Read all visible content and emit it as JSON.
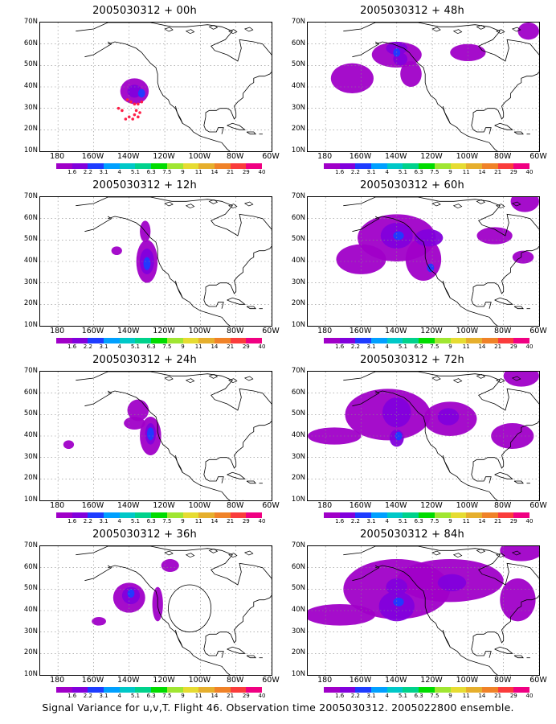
{
  "caption": "Signal Variance for u,v,T. Flight 46. Observation time 2005030312. 2005022800 ensemble.",
  "lat_labels": [
    "70N",
    "60N",
    "50N",
    "40N",
    "30N",
    "20N",
    "10N"
  ],
  "lon_labels": [
    "180",
    "160W",
    "140W",
    "120W",
    "100W",
    "80W",
    "60W"
  ],
  "colorbar": {
    "colors": [
      "#a000c8",
      "#8200dc",
      "#1e3cff",
      "#00a0ff",
      "#00c8c8",
      "#00d28c",
      "#00dc00",
      "#a0e632",
      "#e6dc32",
      "#e6af2d",
      "#f08228",
      "#fa3c3c",
      "#f00082"
    ],
    "labels": [
      "1.6",
      "2.2",
      "3.1",
      "4",
      "5.1",
      "6.3",
      "7.5",
      "9",
      "11",
      "14",
      "21",
      "29",
      "40"
    ]
  },
  "panels": [
    {
      "title": "2005030312 + 00h",
      "forecast_hour": 0
    },
    {
      "title": "2005030312 + 48h",
      "forecast_hour": 48
    },
    {
      "title": "2005030312 + 12h",
      "forecast_hour": 12
    },
    {
      "title": "2005030312 + 60h",
      "forecast_hour": 60
    },
    {
      "title": "2005030312 + 24h",
      "forecast_hour": 24
    },
    {
      "title": "2005030312 + 72h",
      "forecast_hour": 72
    },
    {
      "title": "2005030312 + 36h",
      "forecast_hour": 36
    },
    {
      "title": "2005030312 + 84h",
      "forecast_hour": 84
    }
  ]
}
